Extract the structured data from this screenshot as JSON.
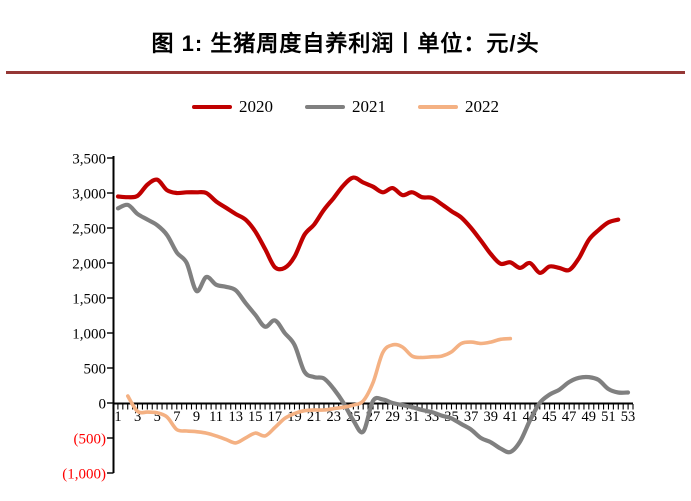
{
  "title": "图 1: 生猪周度自养利润丨单位：元/头",
  "title_rule_color": "#953735",
  "legend": [
    {
      "label": "2020",
      "color": "#c00000"
    },
    {
      "label": "2021",
      "color": "#808080"
    },
    {
      "label": "2022",
      "color": "#f4b183"
    }
  ],
  "axis": {
    "line_color": "#000000",
    "label_color": "#000000",
    "negative_label_color": "#ff0000"
  },
  "chart_data": {
    "type": "line",
    "xlabel": "",
    "ylabel": "",
    "x_unit": "week",
    "x_range": [
      1,
      53
    ],
    "ylim": [
      -1000,
      3500
    ],
    "grid": false,
    "legend_position": "top",
    "x_tick_labels": [
      "1",
      "3",
      "5",
      "7",
      "9",
      "11",
      "13",
      "15",
      "17",
      "19",
      "21",
      "23",
      "25",
      "27",
      "29",
      "31",
      "33",
      "35",
      "37",
      "39",
      "41",
      "43",
      "45",
      "47",
      "49",
      "51",
      "53"
    ],
    "x_tick_weeks": [
      1,
      3,
      5,
      7,
      9,
      11,
      13,
      15,
      17,
      19,
      21,
      23,
      25,
      27,
      29,
      31,
      33,
      35,
      37,
      39,
      41,
      43,
      45,
      47,
      49,
      51,
      53
    ],
    "y_ticks": [
      {
        "value": 3500,
        "label": "3,500",
        "negative": false
      },
      {
        "value": 3000,
        "label": "3,000",
        "negative": false
      },
      {
        "value": 2500,
        "label": "2,500",
        "negative": false
      },
      {
        "value": 2000,
        "label": "2,000",
        "negative": false
      },
      {
        "value": 1500,
        "label": "1,500",
        "negative": false
      },
      {
        "value": 1000,
        "label": "1,000",
        "negative": false
      },
      {
        "value": 500,
        "label": "500",
        "negative": false
      },
      {
        "value": 0,
        "label": "0",
        "negative": false
      },
      {
        "value": -500,
        "label": "(500)",
        "negative": true
      },
      {
        "value": -1000,
        "label": "(1,000)",
        "negative": true
      }
    ],
    "series": [
      {
        "name": "2020",
        "color": "#c00000",
        "stroke_width": 4.2,
        "values": [
          2950,
          2940,
          2960,
          3120,
          3190,
          3040,
          3000,
          3010,
          3010,
          3000,
          2880,
          2790,
          2700,
          2620,
          2450,
          2200,
          1940,
          1930,
          2090,
          2400,
          2550,
          2760,
          2930,
          3110,
          3220,
          3150,
          3090,
          3010,
          3070,
          2970,
          3010,
          2940,
          2930,
          2840,
          2740,
          2650,
          2500,
          2320,
          2130,
          1990,
          2010,
          1930,
          2000,
          1860,
          1950,
          1930,
          1900,
          2070,
          2330,
          2470,
          2580,
          2620,
          null
        ]
      },
      {
        "name": "2021",
        "color": "#808080",
        "stroke_width": 4.2,
        "values": [
          2780,
          2830,
          2700,
          2620,
          2540,
          2400,
          2150,
          2000,
          1600,
          1800,
          1690,
          1660,
          1610,
          1430,
          1260,
          1090,
          1180,
          1000,
          830,
          450,
          370,
          350,
          200,
          0,
          -250,
          -410,
          30,
          50,
          0,
          -30,
          -60,
          -100,
          -130,
          -180,
          -220,
          -300,
          -380,
          -500,
          -560,
          -650,
          -700,
          -550,
          -250,
          0,
          120,
          190,
          300,
          360,
          370,
          330,
          200,
          150,
          150
        ]
      },
      {
        "name": "2022",
        "color": "#f4b183",
        "stroke_width": 3.6,
        "values": [
          null,
          100,
          -120,
          -130,
          -140,
          -200,
          -380,
          -400,
          -410,
          -430,
          -470,
          -520,
          -570,
          -500,
          -430,
          -470,
          -350,
          -220,
          -150,
          -110,
          -100,
          -100,
          -80,
          -60,
          -30,
          30,
          290,
          720,
          830,
          800,
          670,
          650,
          660,
          670,
          730,
          850,
          870,
          850,
          870,
          910,
          920,
          null,
          null,
          null,
          null,
          null,
          null,
          null,
          null,
          null,
          null,
          null,
          null
        ]
      }
    ]
  }
}
